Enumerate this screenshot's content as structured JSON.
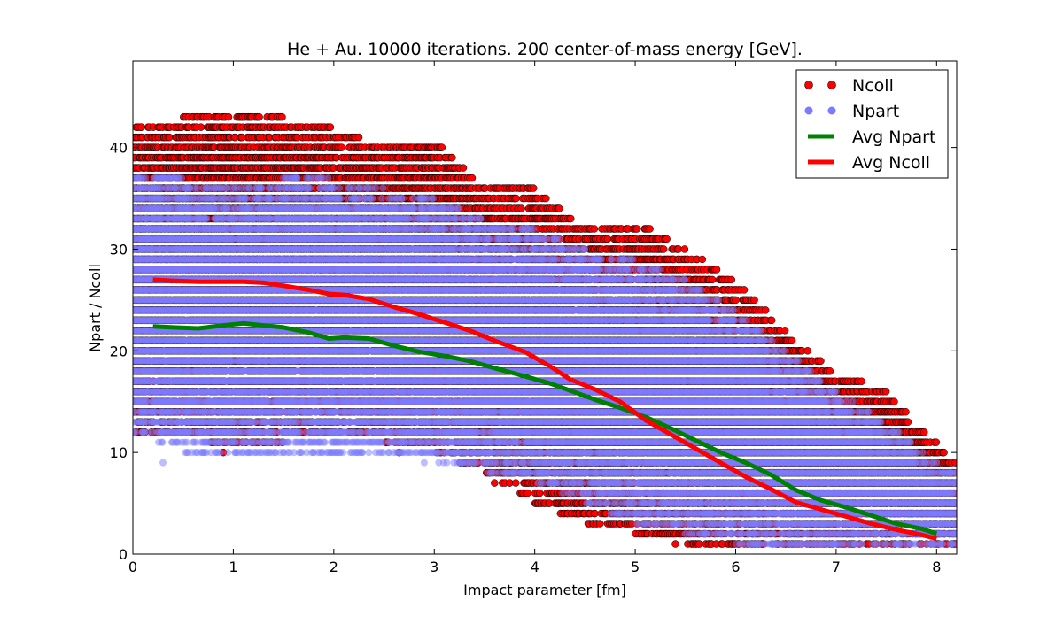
{
  "chart_data": {
    "type": "scatter",
    "title": "He + Au. 10000 iterations. 200 center-of-mass energy [GeV].",
    "xlabel": "Impact parameter [fm]",
    "ylabel": "Npart / Ncoll",
    "xlim": [
      0,
      8.2
    ],
    "ylim": [
      0,
      48.5
    ],
    "xticks": [
      "0",
      "1",
      "2",
      "3",
      "4",
      "5",
      "6",
      "7",
      "8"
    ],
    "yticks": [
      "0",
      "10",
      "20",
      "30",
      "40"
    ],
    "grid": false,
    "legend_position": "top-right",
    "series": [
      {
        "name": "Ncoll",
        "kind": "scatter",
        "color": "#ff0000",
        "envelope_b": [
          0,
          0.5,
          1.0,
          1.5,
          2.0,
          2.5,
          3.0,
          3.5,
          4.0,
          4.5,
          5.0,
          5.5,
          6.0,
          6.5,
          7.0,
          7.5,
          8.0,
          8.2
        ],
        "envelope_min": [
          12,
          12,
          10,
          11,
          12,
          11,
          10,
          8,
          5,
          3,
          2,
          1,
          1,
          1,
          1,
          1,
          1,
          1
        ],
        "envelope_max": [
          42,
          43,
          44,
          43,
          42,
          40,
          41,
          36,
          36,
          32,
          33,
          30,
          27,
          22,
          18,
          16,
          11,
          9
        ],
        "outliers": [
          [
            0.25,
            12
          ],
          [
            0.9,
            10
          ],
          [
            1.3,
            11
          ],
          [
            2.65,
            10
          ],
          [
            3.6,
            7
          ],
          [
            3.7,
            8
          ],
          [
            4.6,
            5
          ],
          [
            5.1,
            5
          ],
          [
            5.4,
            1
          ]
        ]
      },
      {
        "name": "Npart",
        "kind": "scatter",
        "color": "#7b7bff",
        "envelope_b": [
          0,
          0.5,
          1.0,
          1.5,
          2.0,
          2.5,
          3.0,
          3.5,
          4.0,
          4.5,
          5.0,
          5.5,
          6.0,
          6.5,
          7.0,
          7.5,
          8.0,
          8.2
        ],
        "envelope_min": [
          12,
          10,
          10,
          10,
          10,
          10,
          9,
          8,
          7,
          5,
          3,
          2,
          1,
          1,
          1,
          1,
          1,
          1
        ],
        "envelope_max": [
          38,
          37,
          36,
          37,
          37,
          36,
          35,
          33,
          32,
          30,
          29,
          27,
          24,
          20,
          16,
          13,
          9,
          8
        ],
        "outliers": [
          [
            0.3,
            9
          ],
          [
            0.55,
            10
          ],
          [
            1.15,
            10
          ],
          [
            1.5,
            10
          ],
          [
            2.0,
            10
          ],
          [
            2.25,
            10
          ],
          [
            2.9,
            9
          ],
          [
            4.55,
            5
          ]
        ]
      },
      {
        "name": "Avg Npart",
        "kind": "line",
        "color": "#008000",
        "x": [
          0.2,
          0.4,
          0.65,
          0.9,
          1.1,
          1.3,
          1.5,
          1.75,
          1.95,
          2.1,
          2.35,
          2.6,
          2.85,
          3.1,
          3.35,
          3.6,
          3.9,
          4.15,
          4.35,
          4.6,
          4.85,
          5.1,
          5.35,
          5.6,
          5.85,
          6.1,
          6.35,
          6.6,
          6.85,
          7.1,
          7.35,
          7.6,
          7.85,
          8.0
        ],
        "y": [
          22.4,
          22.3,
          22.2,
          22.5,
          22.7,
          22.5,
          22.3,
          21.8,
          21.2,
          21.3,
          21.2,
          20.5,
          19.9,
          19.5,
          19.0,
          18.3,
          17.5,
          16.8,
          16.1,
          15.2,
          14.4,
          13.5,
          12.4,
          11.2,
          10.0,
          9.0,
          7.8,
          6.3,
          5.3,
          4.6,
          3.8,
          3.0,
          2.5,
          2.0
        ]
      },
      {
        "name": "Avg Ncoll",
        "kind": "line",
        "color": "#ff0000",
        "x": [
          0.2,
          0.4,
          0.65,
          0.9,
          1.1,
          1.3,
          1.5,
          1.75,
          1.95,
          2.1,
          2.35,
          2.6,
          2.85,
          3.1,
          3.35,
          3.6,
          3.9,
          4.15,
          4.35,
          4.6,
          4.85,
          5.1,
          5.35,
          5.6,
          5.85,
          6.1,
          6.35,
          6.6,
          6.85,
          7.1,
          7.35,
          7.6,
          7.85,
          8.0
        ],
        "y": [
          27.0,
          26.9,
          26.8,
          26.8,
          26.8,
          26.7,
          26.4,
          26.0,
          25.6,
          25.5,
          25.1,
          24.3,
          23.6,
          22.8,
          22.0,
          21.0,
          19.9,
          18.5,
          17.2,
          16.2,
          15.0,
          13.2,
          11.8,
          10.4,
          9.0,
          7.6,
          6.4,
          5.1,
          4.4,
          3.7,
          3.0,
          2.4,
          1.9,
          1.5
        ]
      }
    ]
  }
}
